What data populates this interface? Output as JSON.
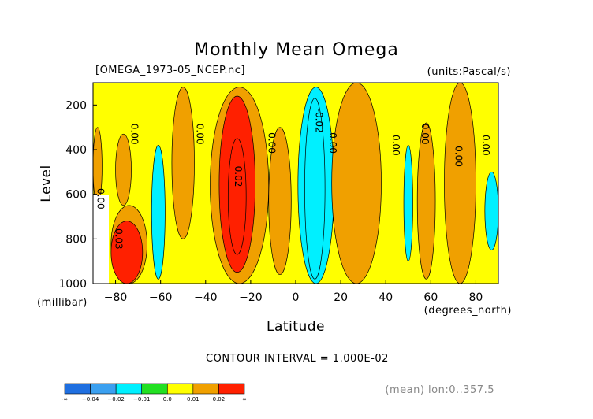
{
  "chart_data": {
    "type": "heatmap",
    "title": "Monthly Mean Omega",
    "file_label": "[OMEGA_1973-05_NCEP.nc]",
    "units_label": "(units:Pascal/s)",
    "xlabel": "Latitude",
    "x_units": "(degrees_north)",
    "ylabel": "Level",
    "y_units": "(millibar)",
    "xlim": [
      -90,
      90
    ],
    "ylim": [
      1000,
      100
    ],
    "y_inverted": true,
    "x_ticks": [
      -80,
      -60,
      -40,
      -20,
      0,
      20,
      40,
      60,
      80
    ],
    "y_ticks": [
      200,
      400,
      600,
      800,
      1000
    ],
    "contour_interval_text": "CONTOUR INTERVAL = 1.000E-02",
    "mean_text": "(mean) lon:0..357.5",
    "colorbar": {
      "bounds": [
        "-∞",
        "-0.04",
        "-0.02",
        "-0.01",
        "0.0",
        "0.01",
        "0.02",
        "∞"
      ],
      "colors": [
        "#1f6fe0",
        "#3ba0f0",
        "#00f0ff",
        "#22e022",
        "#ffff00",
        "#f0a000",
        "#ff2000"
      ],
      "tick_labels": [
        "-∞",
        "−0.04",
        "−0.02",
        "−0.01",
        "0.0",
        "0.01",
        "0.02",
        "∞"
      ]
    },
    "contour_labels": [
      {
        "text": "0.00",
        "lat": -73,
        "lev": 330
      },
      {
        "text": "0.00",
        "lat": -44,
        "lev": 330
      },
      {
        "text": "0.02",
        "lat": -27,
        "lev": 520
      },
      {
        "text": "0.00",
        "lat": -12,
        "lev": 370
      },
      {
        "text": "-0.02",
        "lat": 9,
        "lev": 270
      },
      {
        "text": "0.00",
        "lat": 15,
        "lev": 370
      },
      {
        "text": "0.00",
        "lat": 43,
        "lev": 380
      },
      {
        "text": "0.00",
        "lat": 56,
        "lev": 330
      },
      {
        "text": "0.00",
        "lat": 71,
        "lev": 430
      },
      {
        "text": "0.00",
        "lat": 83,
        "lev": 380
      },
      {
        "text": "0.00",
        "lat": -88,
        "lev": 620
      },
      {
        "text": "0.03",
        "lat": -80,
        "lev": 800
      }
    ],
    "regions": [
      {
        "category": "0.0",
        "lat": [
          -90,
          90
        ],
        "lev": [
          100,
          1000
        ]
      },
      {
        "category": "0.01",
        "lat": [
          -90,
          -86
        ],
        "lev": [
          300,
          650
        ]
      },
      {
        "category": "0.01",
        "lat": [
          -80,
          -73
        ],
        "lev": [
          330,
          650
        ]
      },
      {
        "category": "0.01",
        "lat": [
          -82,
          -66
        ],
        "lev": [
          650,
          1000
        ]
      },
      {
        "category": "0.02",
        "lat": [
          -82,
          -68
        ],
        "lev": [
          720,
          1000
        ]
      },
      {
        "category": "-0.01",
        "lat": [
          -64,
          -58
        ],
        "lev": [
          380,
          980
        ]
      },
      {
        "category": "0.01",
        "lat": [
          -55,
          -45
        ],
        "lev": [
          120,
          800
        ]
      },
      {
        "category": "0.01",
        "lat": [
          -38,
          -12
        ],
        "lev": [
          120,
          1000
        ]
      },
      {
        "category": "0.02",
        "lat": [
          -34,
          -18
        ],
        "lev": [
          160,
          950
        ]
      },
      {
        "category": "0.02",
        "lat": [
          -30,
          -22
        ],
        "lev": [
          350,
          870
        ]
      },
      {
        "category": "0.01",
        "lat": [
          -12,
          -2
        ],
        "lev": [
          300,
          960
        ]
      },
      {
        "category": "-0.01",
        "lat": [
          1,
          17
        ],
        "lev": [
          120,
          1000
        ]
      },
      {
        "category": "-0.01",
        "lat": [
          4,
          13
        ],
        "lev": [
          170,
          980
        ]
      },
      {
        "category": "0.01",
        "lat": [
          16,
          38
        ],
        "lev": [
          100,
          1000
        ]
      },
      {
        "category": "-0.01",
        "lat": [
          48,
          52
        ],
        "lev": [
          380,
          900
        ]
      },
      {
        "category": "0.01",
        "lat": [
          54,
          62
        ],
        "lev": [
          280,
          980
        ]
      },
      {
        "category": "0.01",
        "lat": [
          66,
          80
        ],
        "lev": [
          100,
          1000
        ]
      },
      {
        "category": "-0.01",
        "lat": [
          84,
          90
        ],
        "lev": [
          500,
          850
        ]
      }
    ]
  }
}
